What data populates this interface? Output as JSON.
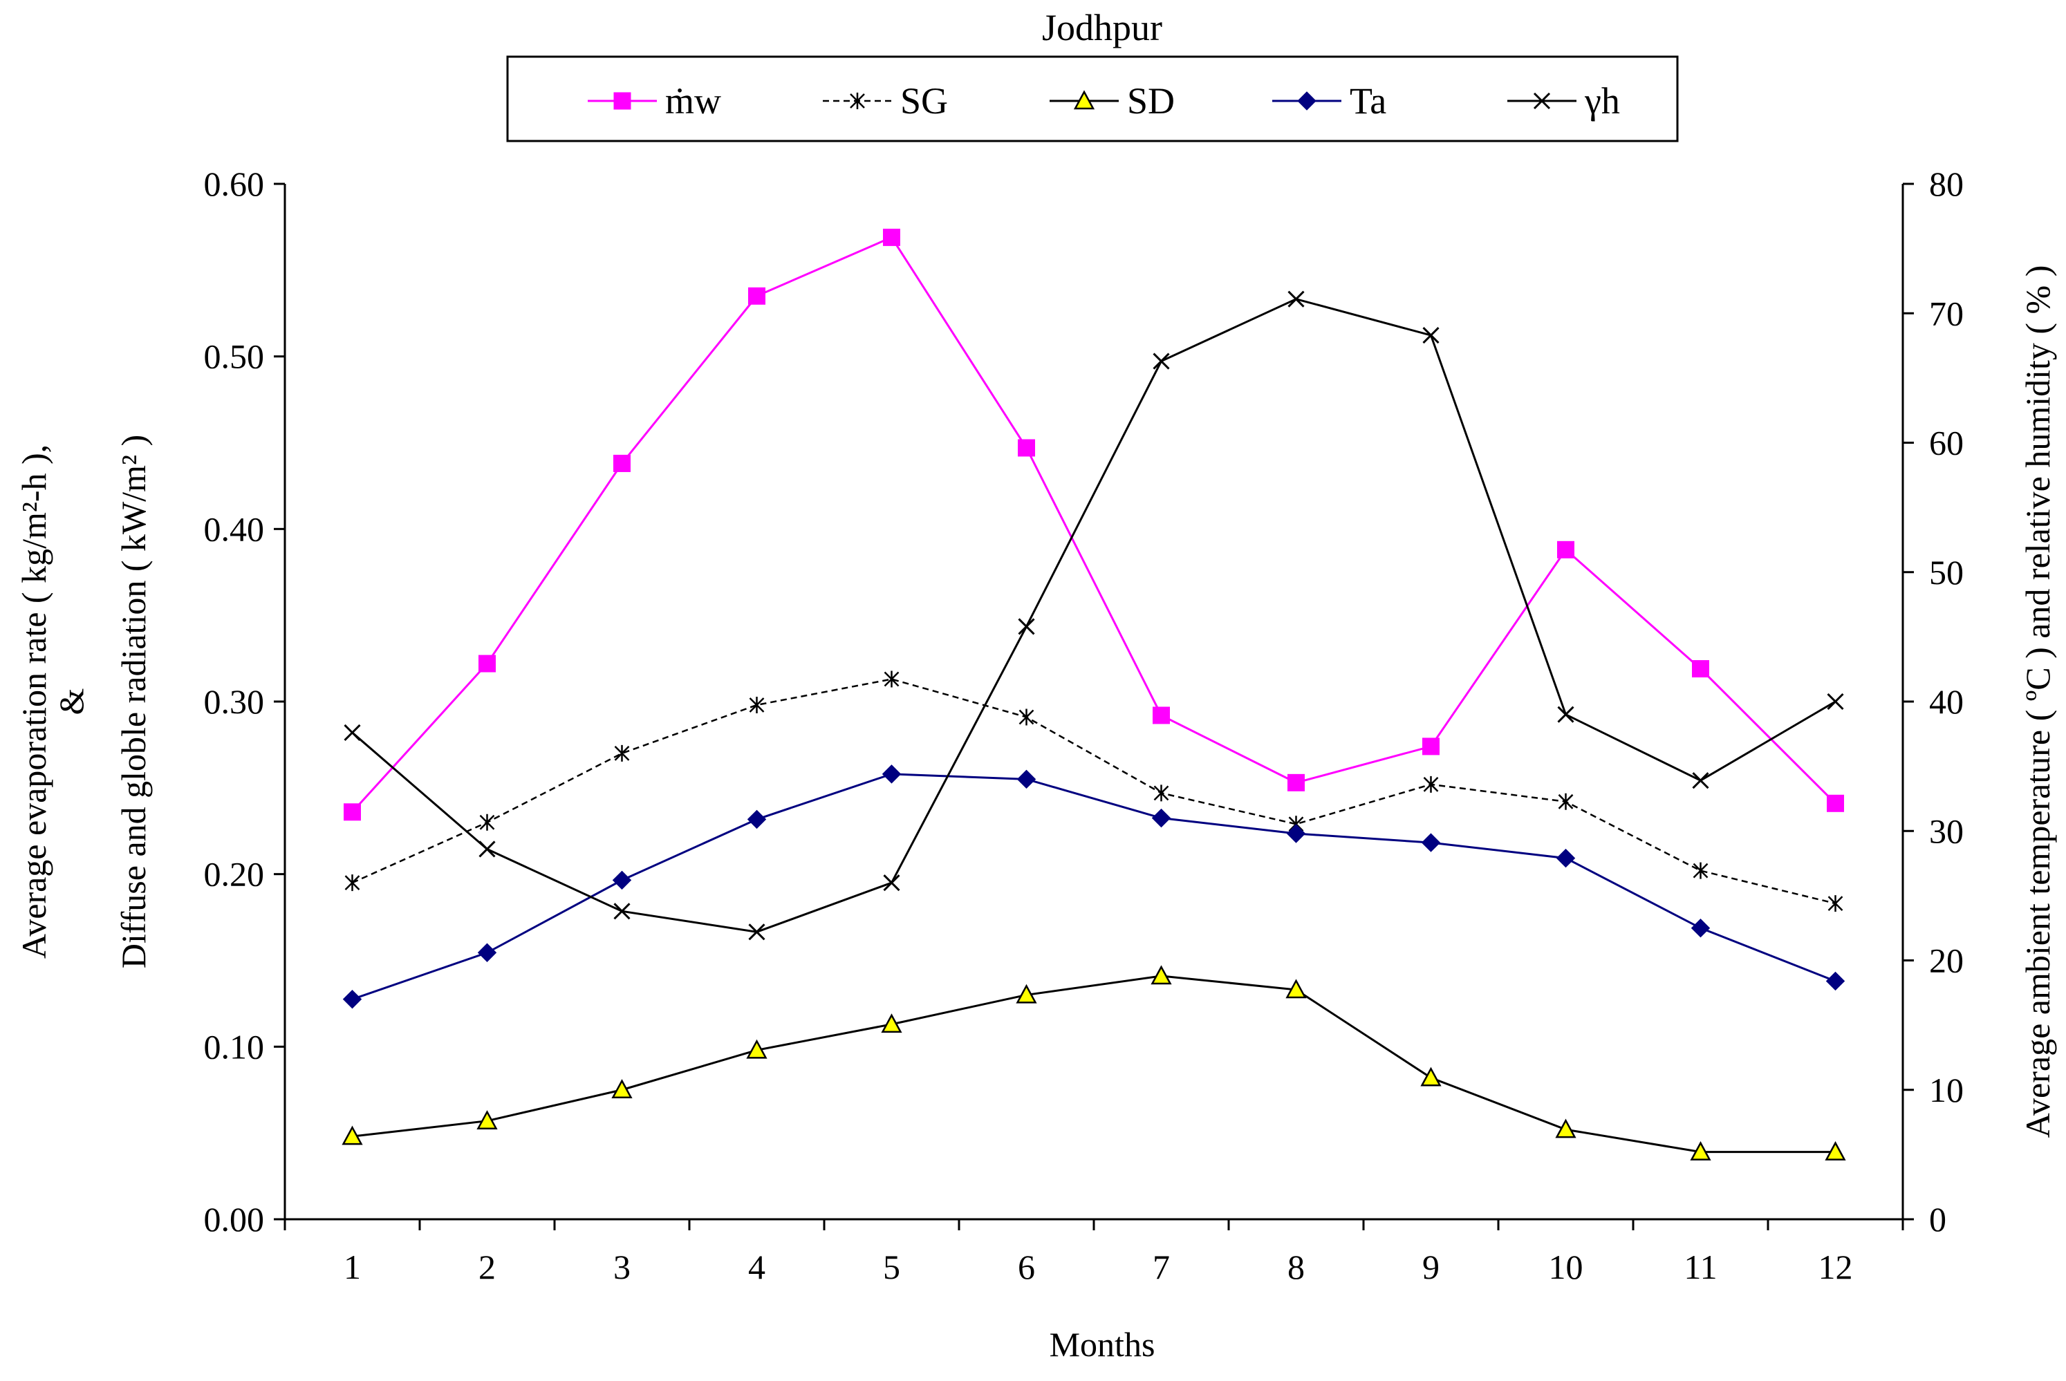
{
  "chart_data": {
    "type": "line",
    "title": "Jodhpur",
    "xlabel": "Months",
    "ylabel_left_line1": "Average evaporation rate ( kg/m²-h ),",
    "ylabel_left_line2": "&",
    "ylabel_left_line3": "Diffuse and globle radiation ( kW/m² )",
    "ylabel_right": "Average ambient temperature ( ºC ) and relative humidity ( % )",
    "categories": [
      "1",
      "2",
      "3",
      "4",
      "5",
      "6",
      "7",
      "8",
      "9",
      "10",
      "11",
      "12"
    ],
    "y_left": {
      "min": 0,
      "max": 0.6,
      "ticks": [
        "0.00",
        "0.10",
        "0.20",
        "0.30",
        "0.40",
        "0.50",
        "0.60"
      ]
    },
    "y_right": {
      "min": 0,
      "max": 80,
      "ticks": [
        "0",
        "10",
        "20",
        "30",
        "40",
        "50",
        "60",
        "70",
        "80"
      ]
    },
    "legend_position": "top-center",
    "series": [
      {
        "name": "ṁw",
        "axis": "left",
        "color": "#ff00ff",
        "marker": "square",
        "dash": "solid",
        "values": [
          0.236,
          0.322,
          0.438,
          0.535,
          0.569,
          0.447,
          0.292,
          0.253,
          0.274,
          0.388,
          0.319,
          0.241
        ]
      },
      {
        "name": "SG",
        "axis": "left",
        "color": "#000000",
        "marker": "star",
        "dash": "dashed",
        "values": [
          0.195,
          0.23,
          0.27,
          0.298,
          0.313,
          0.291,
          0.247,
          0.229,
          0.252,
          0.242,
          0.202,
          0.183
        ]
      },
      {
        "name": "SD",
        "axis": "left",
        "color": "#000000",
        "marker": "triangle",
        "dash": "solid",
        "fill": "#ffff00",
        "values": [
          0.048,
          0.057,
          0.075,
          0.098,
          0.113,
          0.13,
          0.141,
          0.133,
          0.082,
          0.052,
          0.039,
          0.039
        ]
      },
      {
        "name": "Ta",
        "axis": "right",
        "color": "#000080",
        "marker": "diamond",
        "dash": "solid",
        "values": [
          17.0,
          20.6,
          26.2,
          30.9,
          34.4,
          34.0,
          31.0,
          29.8,
          29.1,
          27.9,
          22.5,
          18.4
        ]
      },
      {
        "name": "γh",
        "axis": "right",
        "color": "#000000",
        "marker": "x",
        "dash": "solid",
        "values": [
          37.6,
          28.6,
          23.8,
          22.2,
          26.0,
          45.8,
          66.3,
          71.1,
          68.3,
          39.0,
          33.9,
          40.0
        ]
      }
    ]
  }
}
